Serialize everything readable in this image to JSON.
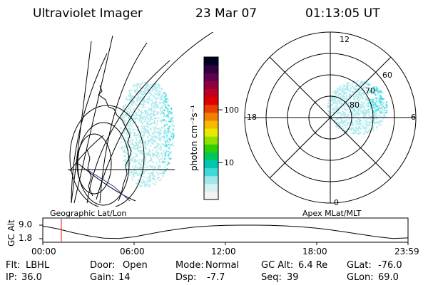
{
  "header": {
    "instrument": "Ultraviolet Imager",
    "date": "23 Mar 07",
    "time": "01:13:05 UT"
  },
  "left_panel": {
    "caption": "Geographic Lat/Lon"
  },
  "right_panel": {
    "caption": "Apex MLat/MLT",
    "mlt_labels": [
      "12",
      "18",
      "6",
      "0"
    ],
    "mlat_labels": [
      "60",
      "70",
      "80"
    ]
  },
  "colorbar": {
    "unit_label": "photon cm⁻²s⁻¹",
    "scale": "log",
    "tick_labels": [
      "100",
      "10"
    ],
    "tick_values": [
      100,
      10
    ],
    "range": [
      2,
      1000
    ],
    "colors": [
      "#f4f4f4",
      "#d8f0f0",
      "#a0e8e8",
      "#40d8d8",
      "#00c8b0",
      "#00c860",
      "#30d000",
      "#90e000",
      "#e8e800",
      "#f8b800",
      "#f08000",
      "#e84000",
      "#e00000",
      "#c00020",
      "#900040",
      "#600050",
      "#300040",
      "#000020"
    ]
  },
  "altitude_plot": {
    "ylabel": "GC Alt",
    "y_ticks": [
      "9.0",
      "1.8"
    ],
    "x_ticks": [
      "00:00",
      "06:00",
      "12:00",
      "18:00",
      "23:59"
    ]
  },
  "chart_data": {
    "type": "line",
    "title": "",
    "xlabel": "",
    "ylabel": "GC Alt",
    "x_hours": [
      0,
      1,
      2,
      3,
      4,
      5,
      6,
      7,
      8,
      9,
      10,
      11,
      12,
      13,
      14,
      15,
      16,
      17,
      18,
      19,
      20,
      21,
      22,
      23,
      24
    ],
    "series": [
      {
        "values": [
          8.5,
          7.0,
          5.0,
          3.3,
          2.1,
          1.9,
          2.8,
          4.3,
          5.8,
          7.0,
          8.0,
          8.6,
          8.9,
          9.0,
          9.0,
          8.9,
          8.6,
          8.1,
          7.4,
          6.4,
          5.2,
          4.0,
          2.8,
          1.9,
          2.2
        ]
      }
    ],
    "xlim": [
      0,
      24
    ],
    "ylim": [
      1.8,
      9.0
    ],
    "current_time_hours": 1.218,
    "current_altitude_re": 6.4
  },
  "footer": {
    "rows": [
      [
        {
          "label": "Flt:",
          "value": "LBHL"
        },
        {
          "label": "Door:",
          "value": "Open"
        },
        {
          "label": "Mode:",
          "value": "Normal"
        },
        {
          "label": "GC Alt:",
          "value": "6.4 Re"
        },
        {
          "label": "GLat:",
          "value": "-76.0"
        }
      ],
      [
        {
          "label": "IP:",
          "value": "36.0"
        },
        {
          "label": "Gain:",
          "value": "14"
        },
        {
          "label": "Dsp:",
          "value": "-7.7"
        },
        {
          "label": "Seq:",
          "value": "39"
        },
        {
          "label": "GLon:",
          "value": "69.0"
        }
      ]
    ]
  },
  "colors": {
    "axes": "#000000",
    "marker": "#ff0000",
    "aurora": "#a8e8ec",
    "aurora_bright": "#30d8e0"
  }
}
